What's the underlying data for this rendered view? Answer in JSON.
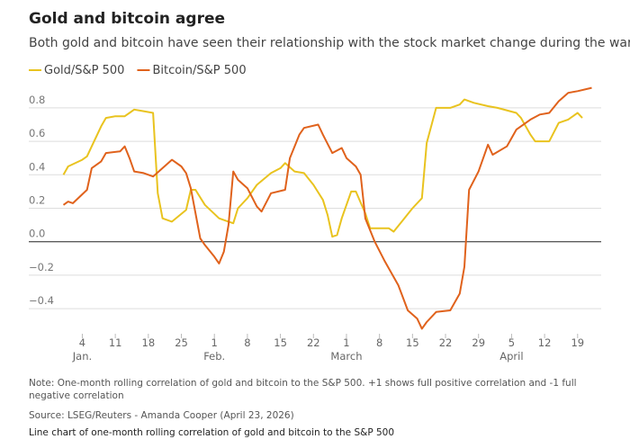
{
  "chart_data": {
    "type": "line",
    "title": "Gold and bitcoin agree",
    "subtitle": "Both gold and bitcoin have seen their relationship with the stock market change during the war",
    "note": "Note: One-month rolling correlation of gold and bitcoin to the S&P 500. +1 shows full positive correlation and -1 full negative correlation",
    "source": "Source: LSEG/Reuters - Amanda Cooper (April 23, 2026)",
    "caption": "Line chart of one-month rolling correlation of gold and bitcoin to the S&P 500",
    "series": [
      {
        "name": "Gold/S&P 500",
        "color": "#e9c31f",
        "x": [
          0,
          1,
          4,
          5,
          6,
          8,
          9,
          11,
          13,
          14,
          15,
          17,
          19,
          20,
          21,
          23,
          26,
          27,
          28,
          30,
          33,
          35,
          36,
          37,
          39,
          41,
          44,
          46,
          47,
          49,
          51,
          53,
          55,
          56,
          57,
          58,
          59,
          61,
          62,
          64,
          65,
          67,
          69,
          70,
          72,
          74,
          76,
          77,
          79,
          82,
          84,
          85,
          87,
          90,
          92,
          96,
          97,
          99,
          100,
          103,
          105,
          107,
          109,
          110
        ],
        "values": [
          0.4,
          0.45,
          0.49,
          0.51,
          0.57,
          0.69,
          0.74,
          0.75,
          0.75,
          0.77,
          0.79,
          0.78,
          0.77,
          0.29,
          0.14,
          0.12,
          0.19,
          0.31,
          0.31,
          0.22,
          0.14,
          0.12,
          0.11,
          0.2,
          0.26,
          0.34,
          0.41,
          0.44,
          0.47,
          0.42,
          0.41,
          0.34,
          0.25,
          0.16,
          0.03,
          0.04,
          0.14,
          0.3,
          0.3,
          0.17,
          0.08,
          0.08,
          0.08,
          0.06,
          0.13,
          0.2,
          0.26,
          0.59,
          0.8,
          0.8,
          0.82,
          0.85,
          0.83,
          0.81,
          0.8,
          0.77,
          0.74,
          0.64,
          0.6,
          0.6,
          0.71,
          0.73,
          0.77,
          0.74
        ]
      },
      {
        "name": "Bitcoin/S&P 500",
        "color": "#e0621c",
        "x": [
          0,
          1,
          2,
          5,
          6,
          8,
          9,
          12,
          13,
          14,
          15,
          17,
          19,
          21,
          23,
          25,
          26,
          27,
          29,
          30,
          32,
          33,
          34,
          35,
          36,
          37,
          39,
          41,
          42,
          44,
          47,
          48,
          50,
          51,
          54,
          55,
          57,
          59,
          60,
          62,
          63,
          64,
          66,
          68,
          71,
          73,
          75,
          76,
          77,
          79,
          82,
          84,
          85,
          86,
          88,
          90,
          91,
          94,
          96,
          99,
          101,
          103,
          105,
          107,
          109,
          112
        ],
        "values": [
          0.22,
          0.24,
          0.23,
          0.31,
          0.44,
          0.48,
          0.53,
          0.54,
          0.57,
          0.5,
          0.42,
          0.41,
          0.39,
          0.44,
          0.49,
          0.45,
          0.41,
          0.32,
          0.02,
          -0.02,
          -0.09,
          -0.13,
          -0.06,
          0.1,
          0.42,
          0.37,
          0.32,
          0.21,
          0.18,
          0.29,
          0.31,
          0.5,
          0.64,
          0.68,
          0.7,
          0.64,
          0.53,
          0.56,
          0.5,
          0.45,
          0.4,
          0.14,
          0.0,
          -0.11,
          -0.26,
          -0.41,
          -0.46,
          -0.52,
          -0.48,
          -0.42,
          -0.41,
          -0.31,
          -0.15,
          0.31,
          0.42,
          0.58,
          0.52,
          0.57,
          0.67,
          0.73,
          0.76,
          0.77,
          0.84,
          0.89,
          0.9,
          0.92
        ]
      }
    ],
    "xlim": [
      -2,
      114
    ],
    "xticks": [
      {
        "value": 4,
        "label": "4"
      },
      {
        "value": 11,
        "label": "11"
      },
      {
        "value": 18,
        "label": "18"
      },
      {
        "value": 25,
        "label": "25"
      },
      {
        "value": 32,
        "label": "1"
      },
      {
        "value": 39,
        "label": "8"
      },
      {
        "value": 46,
        "label": "15"
      },
      {
        "value": 53,
        "label": "22"
      },
      {
        "value": 60,
        "label": "1"
      },
      {
        "value": 67,
        "label": "8"
      },
      {
        "value": 74,
        "label": "15"
      },
      {
        "value": 81,
        "label": "22"
      },
      {
        "value": 88,
        "label": "29"
      },
      {
        "value": 95,
        "label": "5"
      },
      {
        "value": 102,
        "label": "12"
      },
      {
        "value": 109,
        "label": "19"
      }
    ],
    "month_labels": [
      {
        "value": 4,
        "label": "Jan."
      },
      {
        "value": 32,
        "label": "Feb."
      },
      {
        "value": 60,
        "label": "March"
      },
      {
        "value": 95,
        "label": "April"
      }
    ],
    "ylim": [
      -0.55,
      0.95
    ],
    "yticks": [
      0.8,
      0.6,
      0.4,
      0.2,
      {
        "value": 0,
        "label": "0.0"
      },
      {
        "value": -0.2,
        "label": "−0.2"
      },
      {
        "value": -0.4,
        "label": "−0.4"
      }
    ],
    "grid": true
  }
}
